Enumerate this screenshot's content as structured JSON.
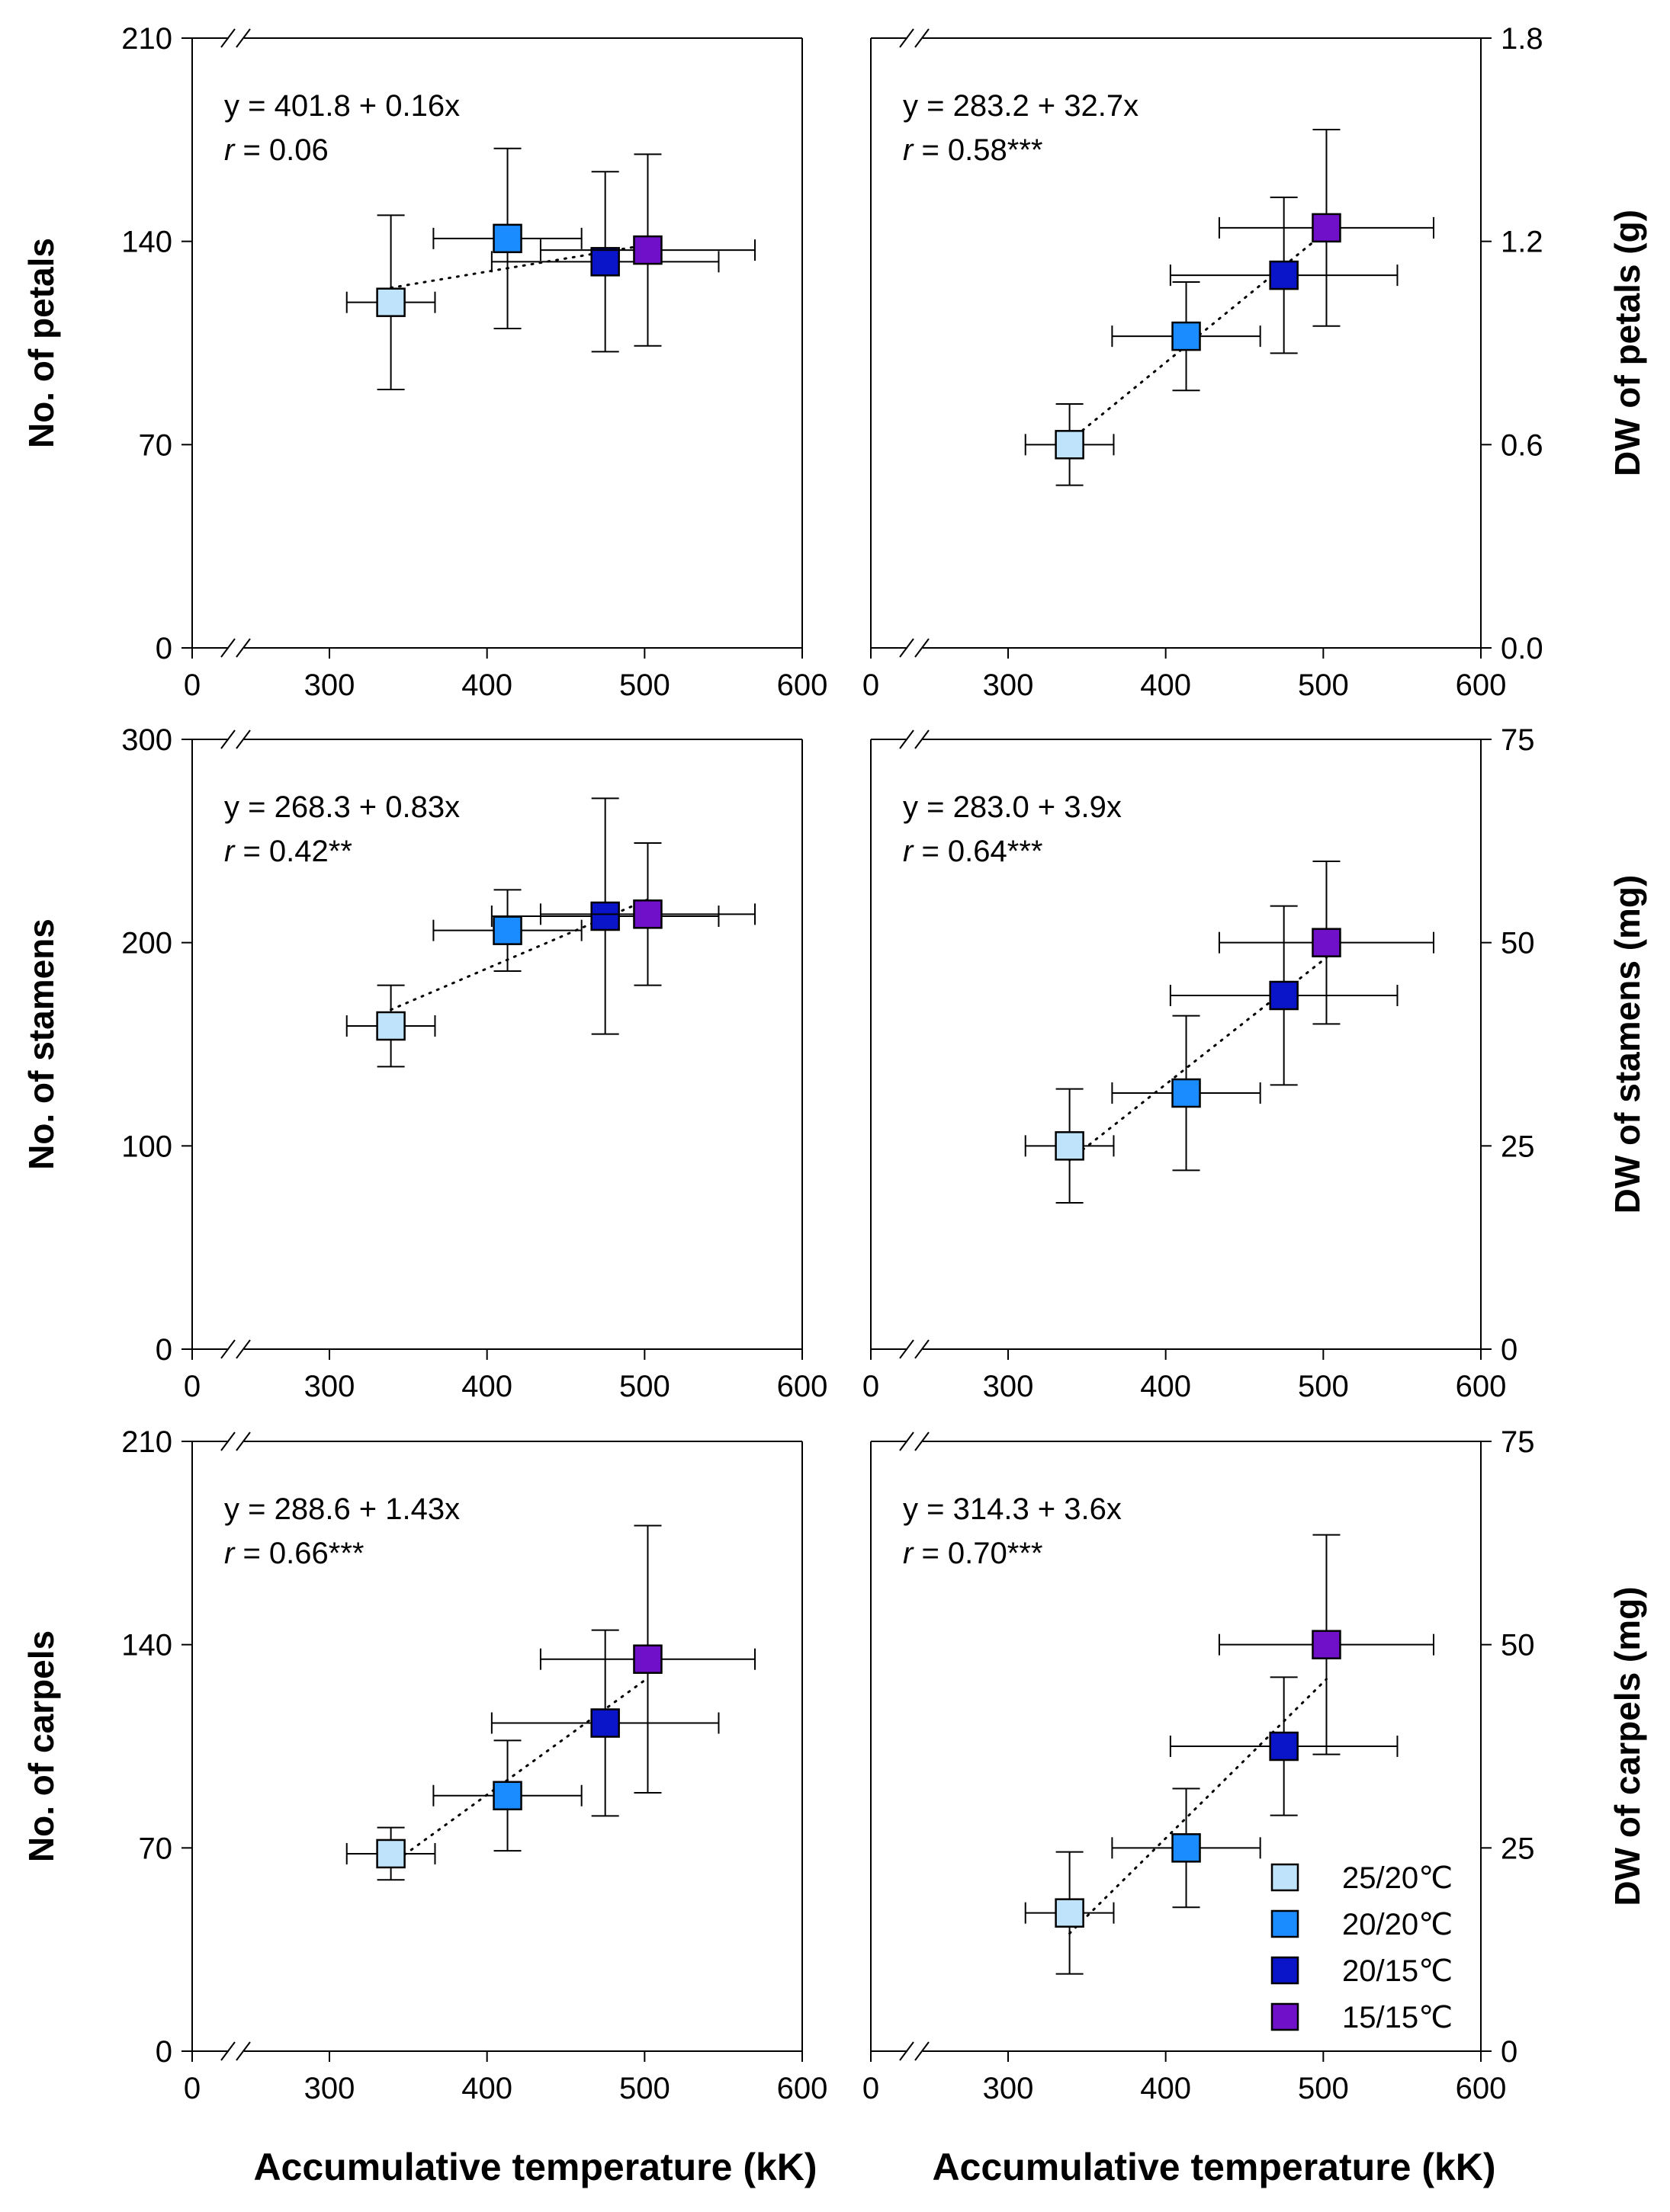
{
  "legend": [
    {
      "name": "25/20℃",
      "color": "#bfe3fa"
    },
    {
      "name": "20/20℃",
      "color": "#1a8cff"
    },
    {
      "name": "20/15℃",
      "color": "#0a14c8"
    },
    {
      "name": "15/15℃",
      "color": "#7010c8"
    }
  ],
  "chart_data": [
    {
      "id": "petals-number",
      "type": "scatter",
      "ylabel": "No. of petals",
      "xlabel": "",
      "equation": "y = 401.8 + 0.16x",
      "r_prefix": "r",
      "r_value": " = 0.06",
      "xlim": [
        0,
        600
      ],
      "xticks": [
        "0",
        "300",
        "400",
        "500",
        "600"
      ],
      "ylim": [
        0,
        210
      ],
      "yticks": [
        "0",
        "70",
        "140",
        "210"
      ],
      "points": [
        {
          "x": 339,
          "y": 119,
          "xerr": 28,
          "yerr": 30
        },
        {
          "x": 413,
          "y": 141,
          "xerr": 47,
          "yerr": 31
        },
        {
          "x": 475,
          "y": 133,
          "xerr": 72,
          "yerr": 31
        },
        {
          "x": 502,
          "y": 137,
          "xerr": 68,
          "yerr": 33
        }
      ]
    },
    {
      "id": "petals-dw",
      "type": "scatter",
      "ylabel": "DW of petals (g)",
      "xlabel": "",
      "equation": "y = 283.2 + 32.7x",
      "r_prefix": "r",
      "r_value": " = 0.58***",
      "xlim": [
        0,
        600
      ],
      "xticks": [
        "0",
        "300",
        "400",
        "500",
        "600"
      ],
      "ylim": [
        0,
        1.8
      ],
      "yticks": [
        "0.0",
        "0.6",
        "1.2",
        "1.8"
      ],
      "points": [
        {
          "x": 339,
          "y": 0.6,
          "xerr": 28,
          "yerr": 0.12
        },
        {
          "x": 413,
          "y": 0.92,
          "xerr": 47,
          "yerr": 0.16
        },
        {
          "x": 475,
          "y": 1.1,
          "xerr": 72,
          "yerr": 0.23
        },
        {
          "x": 502,
          "y": 1.24,
          "xerr": 68,
          "yerr": 0.29
        }
      ]
    },
    {
      "id": "stamens-number",
      "type": "scatter",
      "ylabel": "No. of stamens",
      "xlabel": "",
      "equation": "y = 268.3 + 0.83x",
      "r_prefix": "r",
      "r_value": " = 0.42**",
      "xlim": [
        0,
        600
      ],
      "xticks": [
        "0",
        "300",
        "400",
        "500",
        "600"
      ],
      "ylim": [
        0,
        300
      ],
      "yticks": [
        "0",
        "100",
        "200",
        "300"
      ],
      "points": [
        {
          "x": 339,
          "y": 159,
          "xerr": 28,
          "yerr": 20
        },
        {
          "x": 413,
          "y": 206,
          "xerr": 47,
          "yerr": 20
        },
        {
          "x": 475,
          "y": 213,
          "xerr": 72,
          "yerr": 58
        },
        {
          "x": 502,
          "y": 214,
          "xerr": 68,
          "yerr": 35
        }
      ]
    },
    {
      "id": "stamens-dw",
      "type": "scatter",
      "ylabel": "DW of stamens (mg)",
      "xlabel": "",
      "equation": "y = 283.0 + 3.9x",
      "r_prefix": "r",
      "r_value": " = 0.64***",
      "xlim": [
        0,
        600
      ],
      "xticks": [
        "0",
        "300",
        "400",
        "500",
        "600"
      ],
      "ylim": [
        0,
        75
      ],
      "yticks": [
        "0",
        "25",
        "50",
        "75"
      ],
      "points": [
        {
          "x": 339,
          "y": 25,
          "xerr": 28,
          "yerr": 7
        },
        {
          "x": 413,
          "y": 31.5,
          "xerr": 47,
          "yerr": 9.5
        },
        {
          "x": 475,
          "y": 43.5,
          "xerr": 72,
          "yerr": 11
        },
        {
          "x": 502,
          "y": 50,
          "xerr": 68,
          "yerr": 10
        }
      ]
    },
    {
      "id": "carpels-number",
      "type": "scatter",
      "ylabel": "No. of carpels",
      "xlabel": "Accumulative temperature (kK)",
      "equation": "y = 288.6 + 1.43x",
      "r_prefix": "r",
      "r_value": " = 0.66***",
      "xlim": [
        0,
        600
      ],
      "xticks": [
        "0",
        "300",
        "400",
        "500",
        "600"
      ],
      "ylim": [
        0,
        210
      ],
      "yticks": [
        "0",
        "70",
        "140",
        "210"
      ],
      "points": [
        {
          "x": 339,
          "y": 68,
          "xerr": 28,
          "yerr": 9
        },
        {
          "x": 413,
          "y": 88,
          "xerr": 47,
          "yerr": 19
        },
        {
          "x": 475,
          "y": 113,
          "xerr": 72,
          "yerr": 32
        },
        {
          "x": 502,
          "y": 135,
          "xerr": 68,
          "yerr": 46
        }
      ]
    },
    {
      "id": "carpels-dw",
      "type": "scatter",
      "ylabel": "DW of carpels (mg)",
      "xlabel": "Accumulative temperature (kK)",
      "equation": "y = 314.3 + 3.6x",
      "r_prefix": "r",
      "r_value": " = 0.70***",
      "xlim": [
        0,
        600
      ],
      "xticks": [
        "0",
        "300",
        "400",
        "500",
        "600"
      ],
      "ylim": [
        0,
        75
      ],
      "yticks": [
        "0",
        "25",
        "50",
        "75"
      ],
      "points": [
        {
          "x": 339,
          "y": 17,
          "xerr": 28,
          "yerr": 7.5
        },
        {
          "x": 413,
          "y": 25,
          "xerr": 47,
          "yerr": 7.3
        },
        {
          "x": 475,
          "y": 37.5,
          "xerr": 72,
          "yerr": 8.5
        },
        {
          "x": 502,
          "y": 50,
          "xerr": 68,
          "yerr": 13.5
        }
      ]
    }
  ]
}
